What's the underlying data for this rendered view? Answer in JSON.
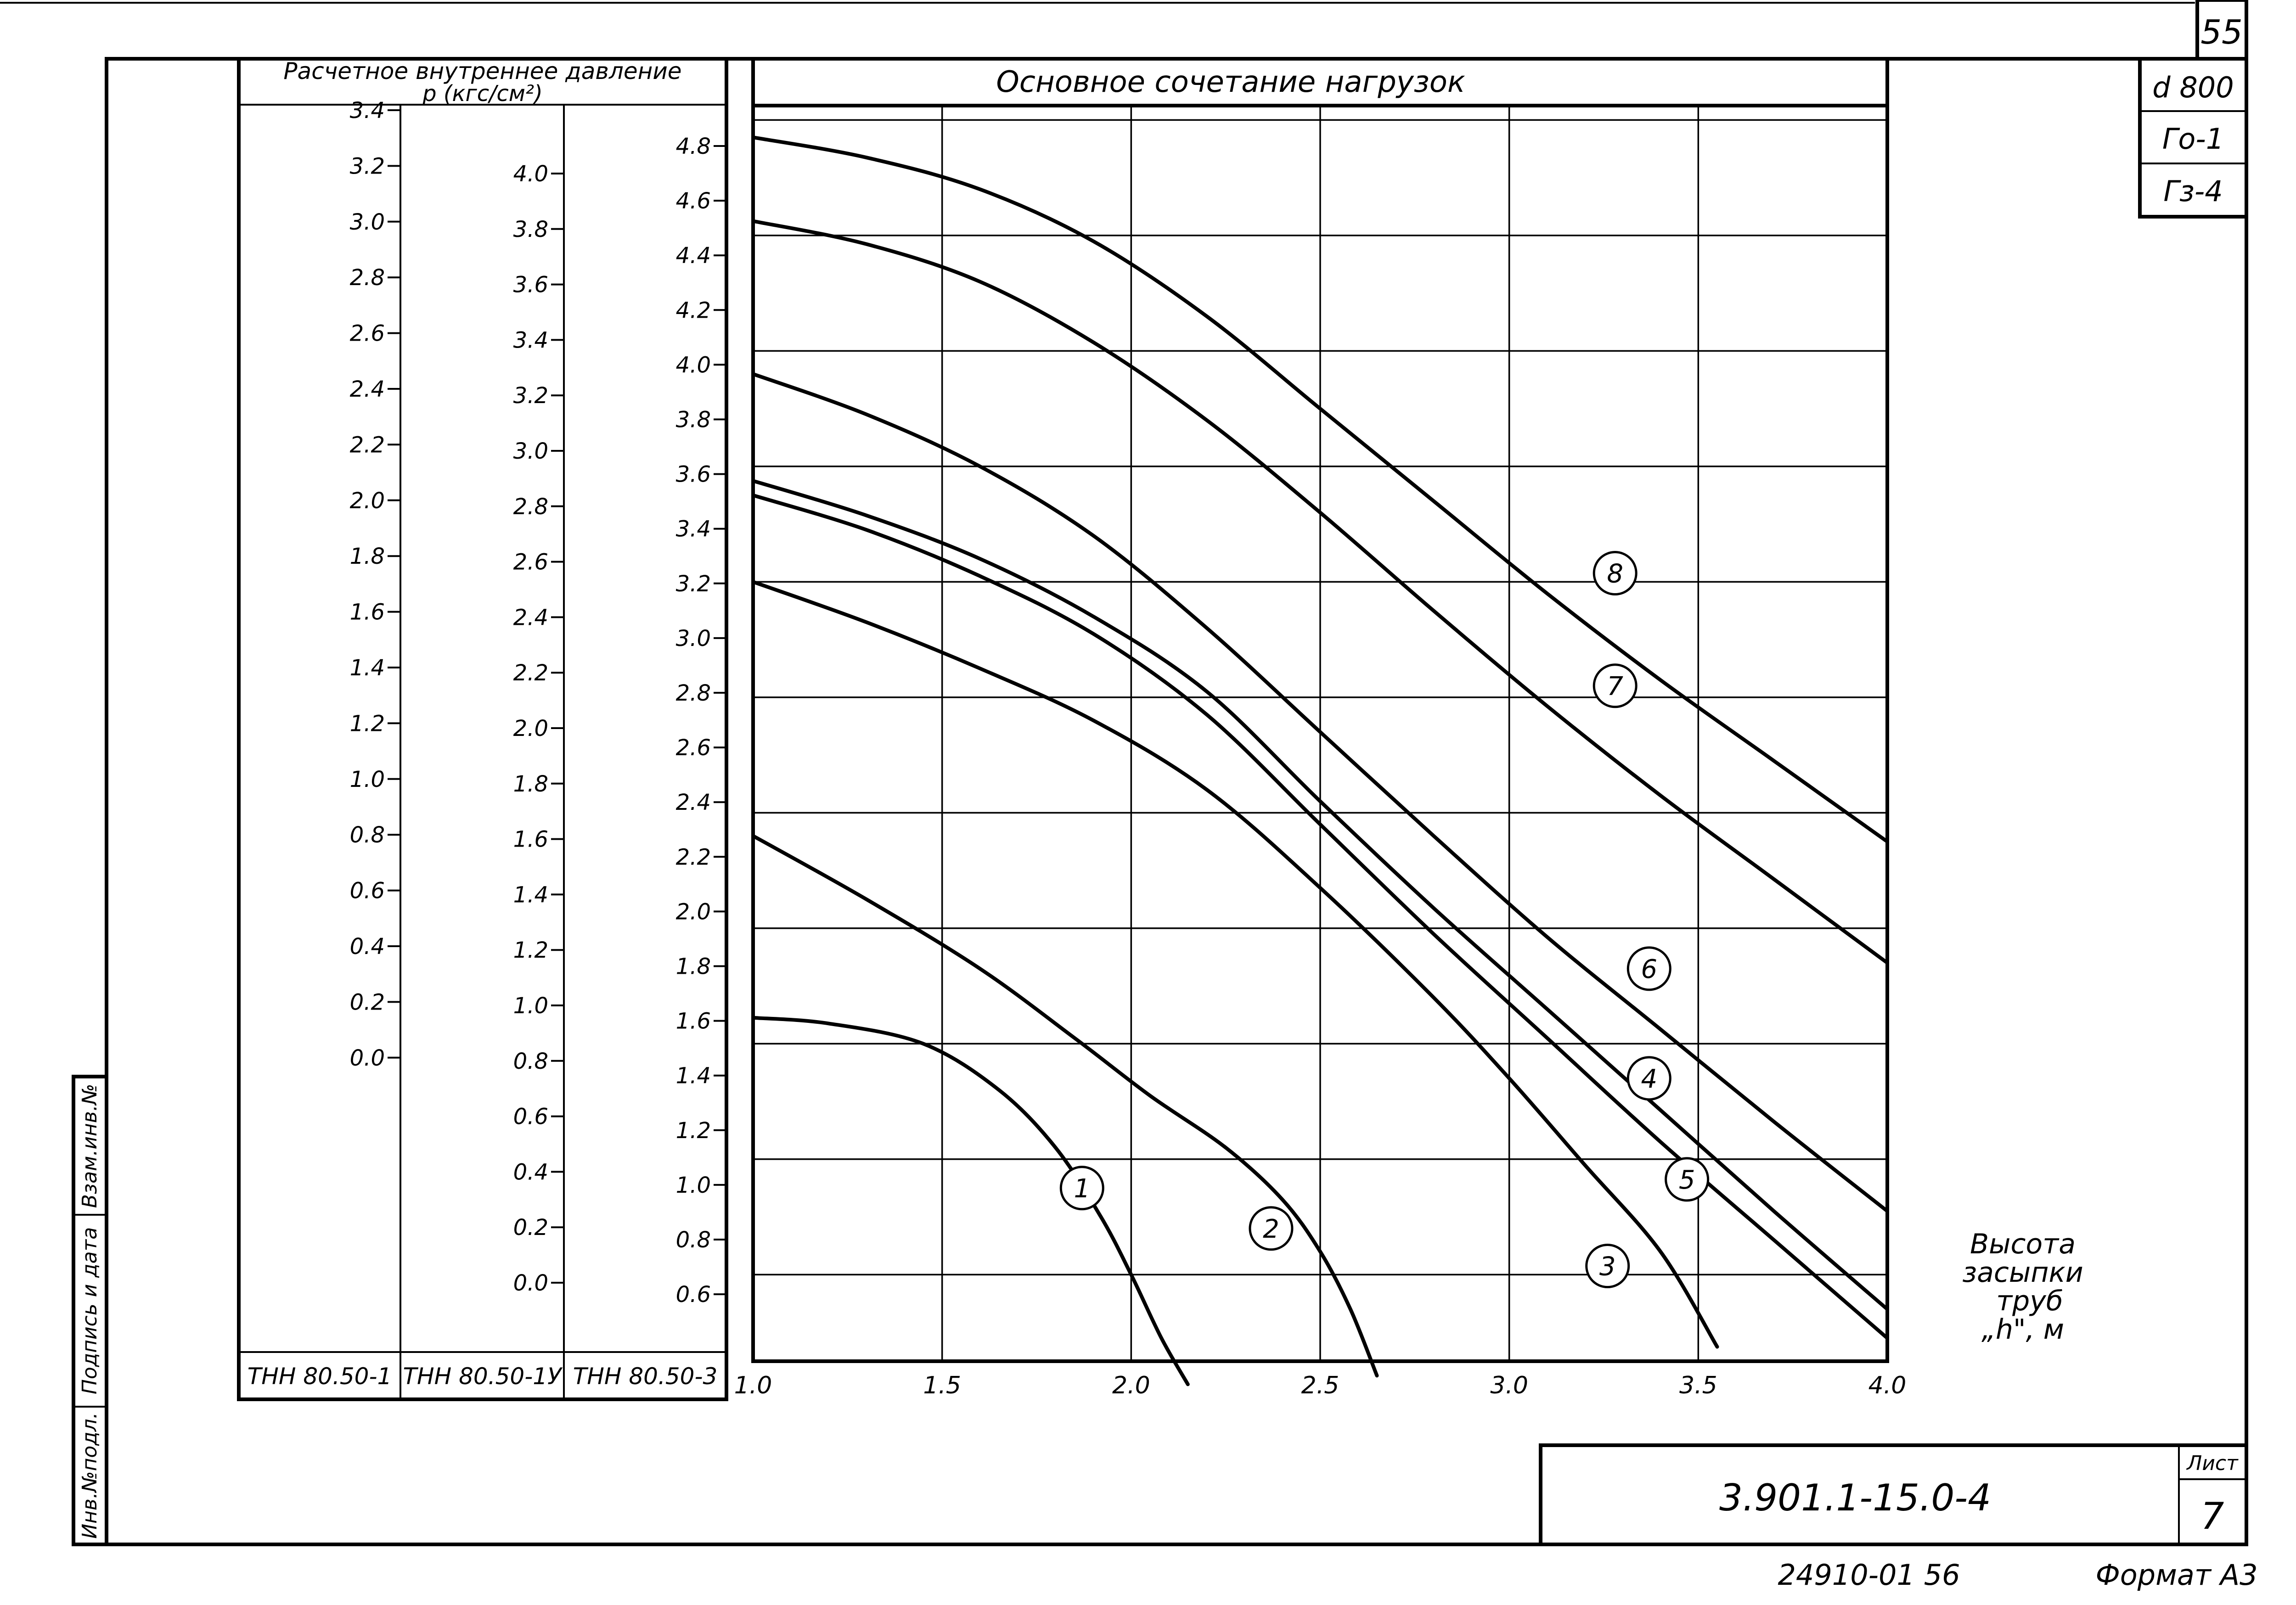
{
  "sheet_number_top": "55",
  "side_labels": [
    "d 800",
    "Го-1",
    "Гз-4"
  ],
  "left_panel_header": {
    "line1": "Расчетное внутреннее давление",
    "line2": "р (кгс/см²)"
  },
  "scales": [
    {
      "name": "ТНН 80.50-1",
      "ticks": [
        "3.4",
        "3.2",
        "3.0",
        "2.8",
        "2.6",
        "2.4",
        "2.2",
        "2.0",
        "1.8",
        "1.6",
        "1.4",
        "1.2",
        "1.0",
        "0.8",
        "0.6",
        "0.4",
        "0.2",
        "0.0"
      ]
    },
    {
      "name": "ТНН 80.50-1У",
      "ticks": [
        "4.0",
        "3.8",
        "3.6",
        "3.4",
        "3.2",
        "3.0",
        "2.8",
        "2.6",
        "2.4",
        "2.2",
        "2.0",
        "1.8",
        "1.6",
        "1.4",
        "1.2",
        "1.0",
        "0.8",
        "0.6",
        "0.4",
        "0.2",
        "0.0"
      ]
    },
    {
      "name": "ТНН 80.50-3",
      "ticks": [
        "4.8",
        "4.6",
        "4.4",
        "4.2",
        "4.0",
        "3.8",
        "3.6",
        "3.4",
        "3.2",
        "3.0",
        "2.8",
        "2.6",
        "2.4",
        "2.2",
        "2.0",
        "1.8",
        "1.6",
        "1.4",
        "1.2",
        "1.0",
        "0.8",
        "0.6"
      ]
    }
  ],
  "chart_data": {
    "type": "line",
    "title": "Основное сочетание нагрузок",
    "xlabel": "Высота засыпки труб „h\", м",
    "ylabel": "Расчетное внутреннее давление р (кгс/см²)",
    "x_ticks": [
      "1.0",
      "1.5",
      "2.0",
      "2.5",
      "3.0",
      "3.5",
      "4.0"
    ],
    "xlim": [
      1.0,
      4.0
    ],
    "ylim": [
      0.5,
      4.85
    ],
    "grid": true,
    "series": [
      {
        "name": "1",
        "points": [
          [
            1.0,
            1.69
          ],
          [
            1.2,
            1.67
          ],
          [
            1.45,
            1.6
          ],
          [
            1.65,
            1.44
          ],
          [
            1.8,
            1.24
          ],
          [
            1.92,
            1.0
          ],
          [
            2.0,
            0.8
          ],
          [
            2.08,
            0.58
          ],
          [
            2.15,
            0.42
          ]
        ]
      },
      {
        "name": "2",
        "points": [
          [
            1.0,
            2.32
          ],
          [
            1.3,
            2.1
          ],
          [
            1.6,
            1.86
          ],
          [
            1.85,
            1.62
          ],
          [
            2.05,
            1.42
          ],
          [
            2.25,
            1.24
          ],
          [
            2.4,
            1.06
          ],
          [
            2.5,
            0.88
          ],
          [
            2.58,
            0.68
          ],
          [
            2.65,
            0.45
          ]
        ]
      },
      {
        "name": "3",
        "points": [
          [
            1.0,
            3.2
          ],
          [
            1.3,
            3.06
          ],
          [
            1.6,
            2.9
          ],
          [
            1.9,
            2.72
          ],
          [
            2.2,
            2.48
          ],
          [
            2.5,
            2.14
          ],
          [
            2.8,
            1.76
          ],
          [
            3.0,
            1.48
          ],
          [
            3.2,
            1.18
          ],
          [
            3.4,
            0.88
          ],
          [
            3.55,
            0.55
          ]
        ]
      },
      {
        "name": "4",
        "points": [
          [
            1.0,
            3.55
          ],
          [
            1.3,
            3.43
          ],
          [
            1.6,
            3.28
          ],
          [
            1.9,
            3.08
          ],
          [
            2.2,
            2.82
          ],
          [
            2.5,
            2.44
          ],
          [
            2.8,
            2.07
          ],
          [
            3.1,
            1.72
          ],
          [
            3.4,
            1.37
          ],
          [
            3.7,
            1.02
          ],
          [
            4.0,
            0.68
          ]
        ]
      },
      {
        "name": "5",
        "points": [
          [
            1.0,
            3.5
          ],
          [
            1.3,
            3.38
          ],
          [
            1.6,
            3.22
          ],
          [
            1.9,
            3.02
          ],
          [
            2.2,
            2.74
          ],
          [
            2.5,
            2.36
          ],
          [
            2.8,
            1.98
          ],
          [
            3.1,
            1.62
          ],
          [
            3.4,
            1.26
          ],
          [
            3.7,
            0.92
          ],
          [
            4.0,
            0.58
          ]
        ]
      },
      {
        "name": "6",
        "points": [
          [
            1.0,
            3.92
          ],
          [
            1.3,
            3.78
          ],
          [
            1.6,
            3.6
          ],
          [
            1.9,
            3.36
          ],
          [
            2.2,
            3.04
          ],
          [
            2.5,
            2.68
          ],
          [
            2.8,
            2.32
          ],
          [
            3.1,
            1.97
          ],
          [
            3.4,
            1.65
          ],
          [
            3.7,
            1.33
          ],
          [
            4.0,
            1.02
          ]
        ]
      },
      {
        "name": "7",
        "points": [
          [
            1.0,
            4.45
          ],
          [
            1.3,
            4.37
          ],
          [
            1.6,
            4.24
          ],
          [
            1.9,
            4.03
          ],
          [
            2.2,
            3.76
          ],
          [
            2.5,
            3.44
          ],
          [
            2.8,
            3.1
          ],
          [
            3.1,
            2.77
          ],
          [
            3.4,
            2.46
          ],
          [
            3.7,
            2.17
          ],
          [
            4.0,
            1.88
          ]
        ]
      },
      {
        "name": "8",
        "points": [
          [
            1.0,
            4.74
          ],
          [
            1.3,
            4.67
          ],
          [
            1.6,
            4.56
          ],
          [
            1.9,
            4.38
          ],
          [
            2.2,
            4.12
          ],
          [
            2.5,
            3.8
          ],
          [
            2.8,
            3.48
          ],
          [
            3.1,
            3.16
          ],
          [
            3.4,
            2.86
          ],
          [
            3.7,
            2.58
          ],
          [
            4.0,
            2.3
          ]
        ]
      }
    ],
    "labels": [
      {
        "text": "1",
        "x": 1.87,
        "y": 1.1
      },
      {
        "text": "2",
        "x": 2.37,
        "y": 0.96
      },
      {
        "text": "3",
        "x": 3.26,
        "y": 0.83
      },
      {
        "text": "4",
        "x": 3.37,
        "y": 1.48
      },
      {
        "text": "5",
        "x": 3.47,
        "y": 1.13
      },
      {
        "text": "6",
        "x": 3.37,
        "y": 1.86
      },
      {
        "text": "7",
        "x": 3.28,
        "y": 2.84
      },
      {
        "text": "8",
        "x": 3.28,
        "y": 3.23
      }
    ]
  },
  "side_stamp": [
    "Взам.инв.№",
    "Подпись и дата",
    "Инв.№подл."
  ],
  "title_block": {
    "doc_number": "3.901.1-15.0-4",
    "sheet_label": "Лист",
    "sheet_value": "7"
  },
  "footer": {
    "archive_number": "24910-01  56",
    "format": "Формат А3"
  }
}
